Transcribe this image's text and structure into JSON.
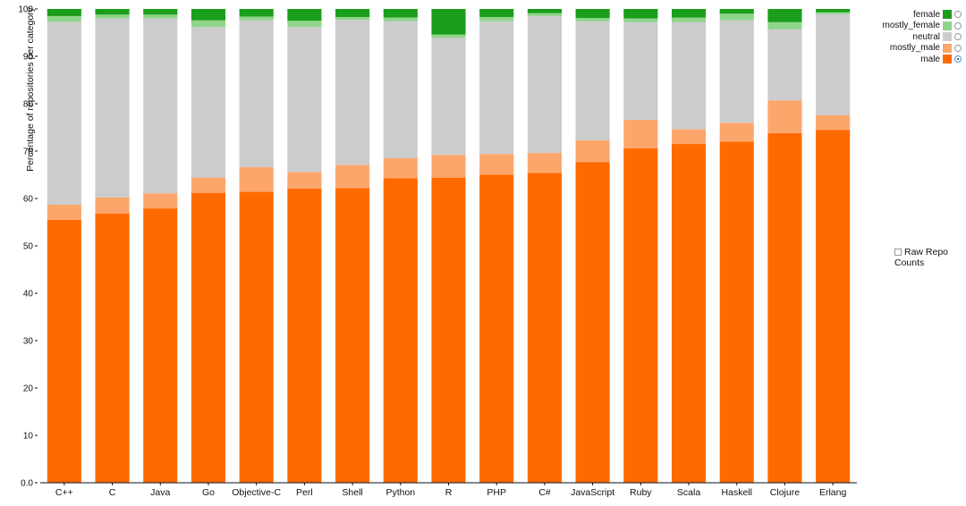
{
  "chart_data": {
    "type": "bar",
    "stacked": true,
    "ylabel": "Percentage of repositories per category",
    "xlabel": "",
    "ylim": [
      0,
      100
    ],
    "yticks": [
      "0.0",
      "10",
      "20",
      "30",
      "40",
      "50",
      "60",
      "70",
      "80",
      "90",
      "100"
    ],
    "grid": false,
    "legend_position": "top-right",
    "categories": [
      "C++",
      "C",
      "Java",
      "Go",
      "Objective-C",
      "Perl",
      "Shell",
      "Python",
      "R",
      "PHP",
      "C#",
      "JavaScript",
      "Ruby",
      "Scala",
      "Haskell",
      "Clojure",
      "Erlang"
    ],
    "series": [
      {
        "name": "male",
        "color": "#ff6a00",
        "values": [
          55.5,
          56.8,
          57.9,
          61.2,
          61.4,
          62.1,
          62.2,
          64.3,
          64.4,
          65.0,
          65.4,
          67.7,
          70.6,
          71.5,
          72.0,
          73.8,
          74.5
        ]
      },
      {
        "name": "mostly_male",
        "color": "#fda66b",
        "values": [
          3.2,
          3.4,
          3.2,
          3.2,
          5.2,
          3.5,
          4.9,
          4.2,
          4.8,
          4.4,
          4.2,
          4.6,
          6.0,
          3.1,
          4.0,
          6.9,
          3.1
        ]
      },
      {
        "name": "neutral",
        "color": "#cccccc",
        "values": [
          38.6,
          37.8,
          36.9,
          31.8,
          31.0,
          30.6,
          30.6,
          28.9,
          24.7,
          28.0,
          28.9,
          25.1,
          20.6,
          22.6,
          21.6,
          15.0,
          21.3
        ]
      },
      {
        "name": "mostly_female",
        "color": "#8fd48b",
        "values": [
          1.2,
          0.8,
          0.8,
          1.4,
          0.8,
          1.3,
          0.6,
          0.8,
          0.7,
          0.9,
          0.6,
          0.7,
          0.8,
          1.0,
          1.4,
          1.5,
          0.4
        ]
      },
      {
        "name": "female",
        "color": "#1b9e1b",
        "values": [
          1.5,
          1.2,
          1.2,
          2.4,
          1.6,
          2.5,
          1.7,
          1.8,
          5.4,
          1.7,
          0.9,
          1.9,
          2.0,
          1.8,
          1.0,
          2.8,
          0.7
        ]
      }
    ],
    "legend_order": [
      "female",
      "mostly_female",
      "neutral",
      "mostly_male",
      "male"
    ],
    "selected_series": "male"
  },
  "controls": {
    "raw_counts_label": "Raw Repo Counts",
    "raw_counts_checked": false
  }
}
